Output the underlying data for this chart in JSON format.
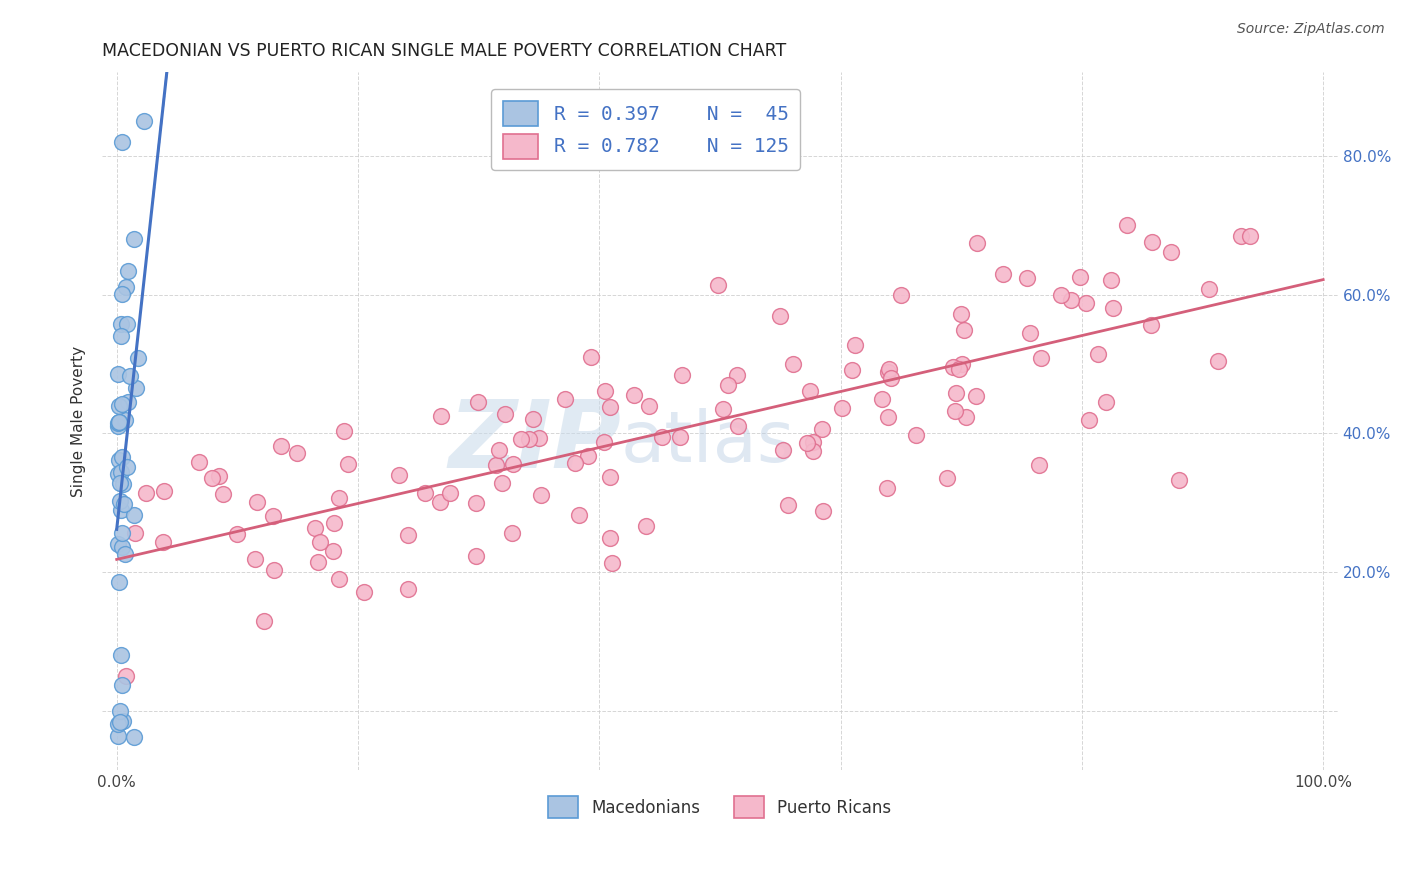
{
  "title": "MACEDONIAN VS PUERTO RICAN SINGLE MALE POVERTY CORRELATION CHART",
  "source": "Source: ZipAtlas.com",
  "ylabel": "Single Male Poverty",
  "macedonian_R": 0.397,
  "macedonian_N": 45,
  "puerto_rican_R": 0.782,
  "puerto_rican_N": 125,
  "macedonian_color": "#aac4e2",
  "macedonian_edge_color": "#5b9bd5",
  "puerto_rican_color": "#f5b8cb",
  "puerto_rican_edge_color": "#e07090",
  "trendline_macedonian_color": "#4472c4",
  "trendline_puerto_rican_color": "#d45f7a",
  "legend_text_color": "#4472c4",
  "right_axis_color": "#4472c4",
  "watermark_zip_color": "#c5d8ec",
  "watermark_atlas_color": "#c5d8ec"
}
